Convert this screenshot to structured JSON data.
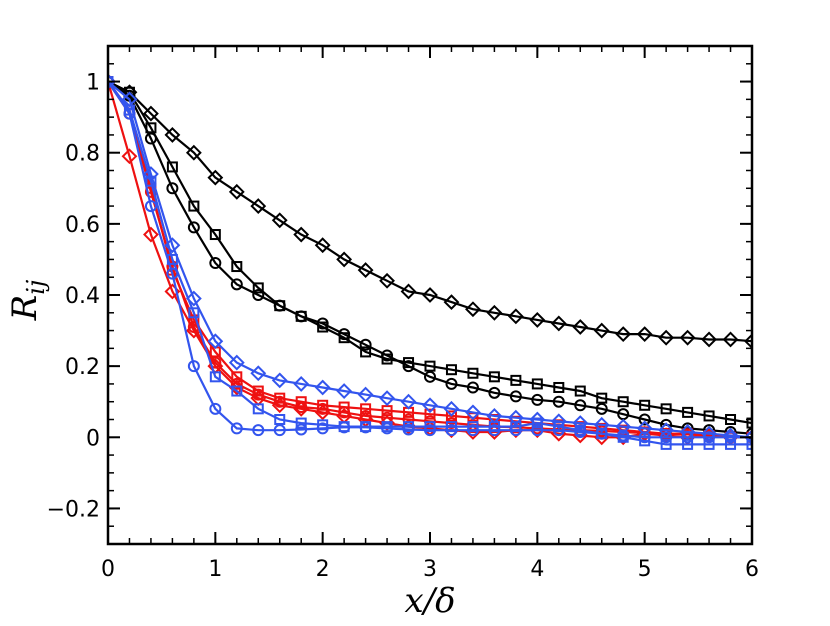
{
  "chart_data": {
    "type": "line",
    "xlabel": "x/δ",
    "ylabel": "R",
    "ylabel_sub": "ij",
    "xlim": [
      0,
      6
    ],
    "ylim": [
      -0.3,
      1.1
    ],
    "xticks": [
      0,
      1,
      2,
      3,
      4,
      5,
      6
    ],
    "xtick_labels": [
      "0",
      "1",
      "2",
      "3",
      "4",
      "5",
      "6"
    ],
    "yticks": [
      -0.2,
      0,
      0.2,
      0.4,
      0.6,
      0.8,
      1
    ],
    "ytick_labels": [
      "−0.2",
      "0",
      "0.2",
      "0.4",
      "0.6",
      "0.8",
      "1"
    ],
    "grid": false,
    "x": [
      0,
      0.2,
      0.4,
      0.6,
      0.8,
      1.0,
      1.2,
      1.4,
      1.6,
      1.8,
      2.0,
      2.2,
      2.4,
      2.6,
      2.8,
      3.0,
      3.2,
      3.4,
      3.6,
      3.8,
      4.0,
      4.2,
      4.4,
      4.6,
      4.8,
      5.0,
      5.2,
      5.4,
      5.6,
      5.8,
      6.0
    ],
    "series": [
      {
        "color": "#000000",
        "marker": "diamond",
        "values": [
          1.0,
          0.97,
          0.91,
          0.85,
          0.8,
          0.73,
          0.69,
          0.65,
          0.61,
          0.57,
          0.54,
          0.5,
          0.47,
          0.44,
          0.41,
          0.4,
          0.38,
          0.36,
          0.35,
          0.34,
          0.33,
          0.32,
          0.31,
          0.3,
          0.29,
          0.29,
          0.28,
          0.28,
          0.275,
          0.275,
          0.27
        ]
      },
      {
        "color": "#000000",
        "marker": "square",
        "values": [
          1.0,
          0.97,
          0.87,
          0.76,
          0.65,
          0.57,
          0.48,
          0.42,
          0.37,
          0.34,
          0.31,
          0.28,
          0.24,
          0.22,
          0.21,
          0.2,
          0.19,
          0.18,
          0.17,
          0.16,
          0.15,
          0.14,
          0.13,
          0.11,
          0.1,
          0.09,
          0.08,
          0.07,
          0.06,
          0.05,
          0.04
        ]
      },
      {
        "color": "#000000",
        "marker": "circle",
        "values": [
          1.0,
          0.96,
          0.84,
          0.7,
          0.59,
          0.49,
          0.43,
          0.4,
          0.37,
          0.34,
          0.32,
          0.29,
          0.26,
          0.23,
          0.2,
          0.17,
          0.15,
          0.14,
          0.125,
          0.115,
          0.105,
          0.1,
          0.09,
          0.08,
          0.065,
          0.05,
          0.035,
          0.025,
          0.02,
          0.015,
          0.01
        ]
      },
      {
        "color": "#ee1111",
        "marker": "diamond",
        "values": [
          1.0,
          0.79,
          0.57,
          0.41,
          0.3,
          0.2,
          0.14,
          0.11,
          0.09,
          0.08,
          0.07,
          0.06,
          0.05,
          0.04,
          0.03,
          0.025,
          0.02,
          0.015,
          0.015,
          0.02,
          0.02,
          0.01,
          0.005,
          0.0,
          0.0,
          0.01,
          0.005,
          0.0,
          0.005,
          0.0,
          0.0
        ]
      },
      {
        "color": "#ee1111",
        "marker": "square",
        "values": [
          1.0,
          0.92,
          0.7,
          0.47,
          0.33,
          0.24,
          0.17,
          0.13,
          0.11,
          0.1,
          0.09,
          0.085,
          0.08,
          0.075,
          0.07,
          0.065,
          0.06,
          0.055,
          0.05,
          0.045,
          0.04,
          0.035,
          0.03,
          0.025,
          0.02,
          0.015,
          0.01,
          0.01,
          0.005,
          0.0,
          0.0
        ]
      },
      {
        "color": "#ee1111",
        "marker": "circle",
        "values": [
          1.0,
          0.91,
          0.69,
          0.48,
          0.31,
          0.21,
          0.15,
          0.12,
          0.1,
          0.085,
          0.08,
          0.07,
          0.06,
          0.055,
          0.05,
          0.045,
          0.04,
          0.035,
          0.03,
          0.028,
          0.025,
          0.022,
          0.02,
          0.018,
          0.015,
          0.012,
          0.01,
          0.008,
          0.005,
          0.002,
          0.0
        ]
      },
      {
        "color": "#3355ee",
        "marker": "diamond",
        "values": [
          1.0,
          0.95,
          0.74,
          0.54,
          0.39,
          0.27,
          0.21,
          0.18,
          0.16,
          0.15,
          0.14,
          0.13,
          0.12,
          0.11,
          0.1,
          0.09,
          0.08,
          0.07,
          0.06,
          0.055,
          0.05,
          0.045,
          0.04,
          0.035,
          0.03,
          0.025,
          0.02,
          0.015,
          0.01,
          0.005,
          0.0
        ]
      },
      {
        "color": "#3355ee",
        "marker": "square",
        "values": [
          1.0,
          0.92,
          0.72,
          0.5,
          0.35,
          0.17,
          0.13,
          0.08,
          0.05,
          0.04,
          0.035,
          0.03,
          0.03,
          0.03,
          0.03,
          0.03,
          0.03,
          0.03,
          0.03,
          0.03,
          0.04,
          0.03,
          0.02,
          0.01,
          0.0,
          -0.01,
          -0.02,
          -0.02,
          -0.02,
          -0.02,
          -0.02
        ]
      },
      {
        "color": "#3355ee",
        "marker": "circle",
        "values": [
          1.0,
          0.91,
          0.65,
          0.46,
          0.2,
          0.08,
          0.025,
          0.02,
          0.02,
          0.022,
          0.025,
          0.028,
          0.028,
          0.025,
          0.022,
          0.02,
          0.02,
          0.02,
          0.02,
          0.02,
          0.02,
          0.02,
          0.015,
          0.01,
          0.005,
          0.0,
          0.0,
          0.0,
          0.0,
          0.0,
          0.0
        ]
      }
    ]
  }
}
